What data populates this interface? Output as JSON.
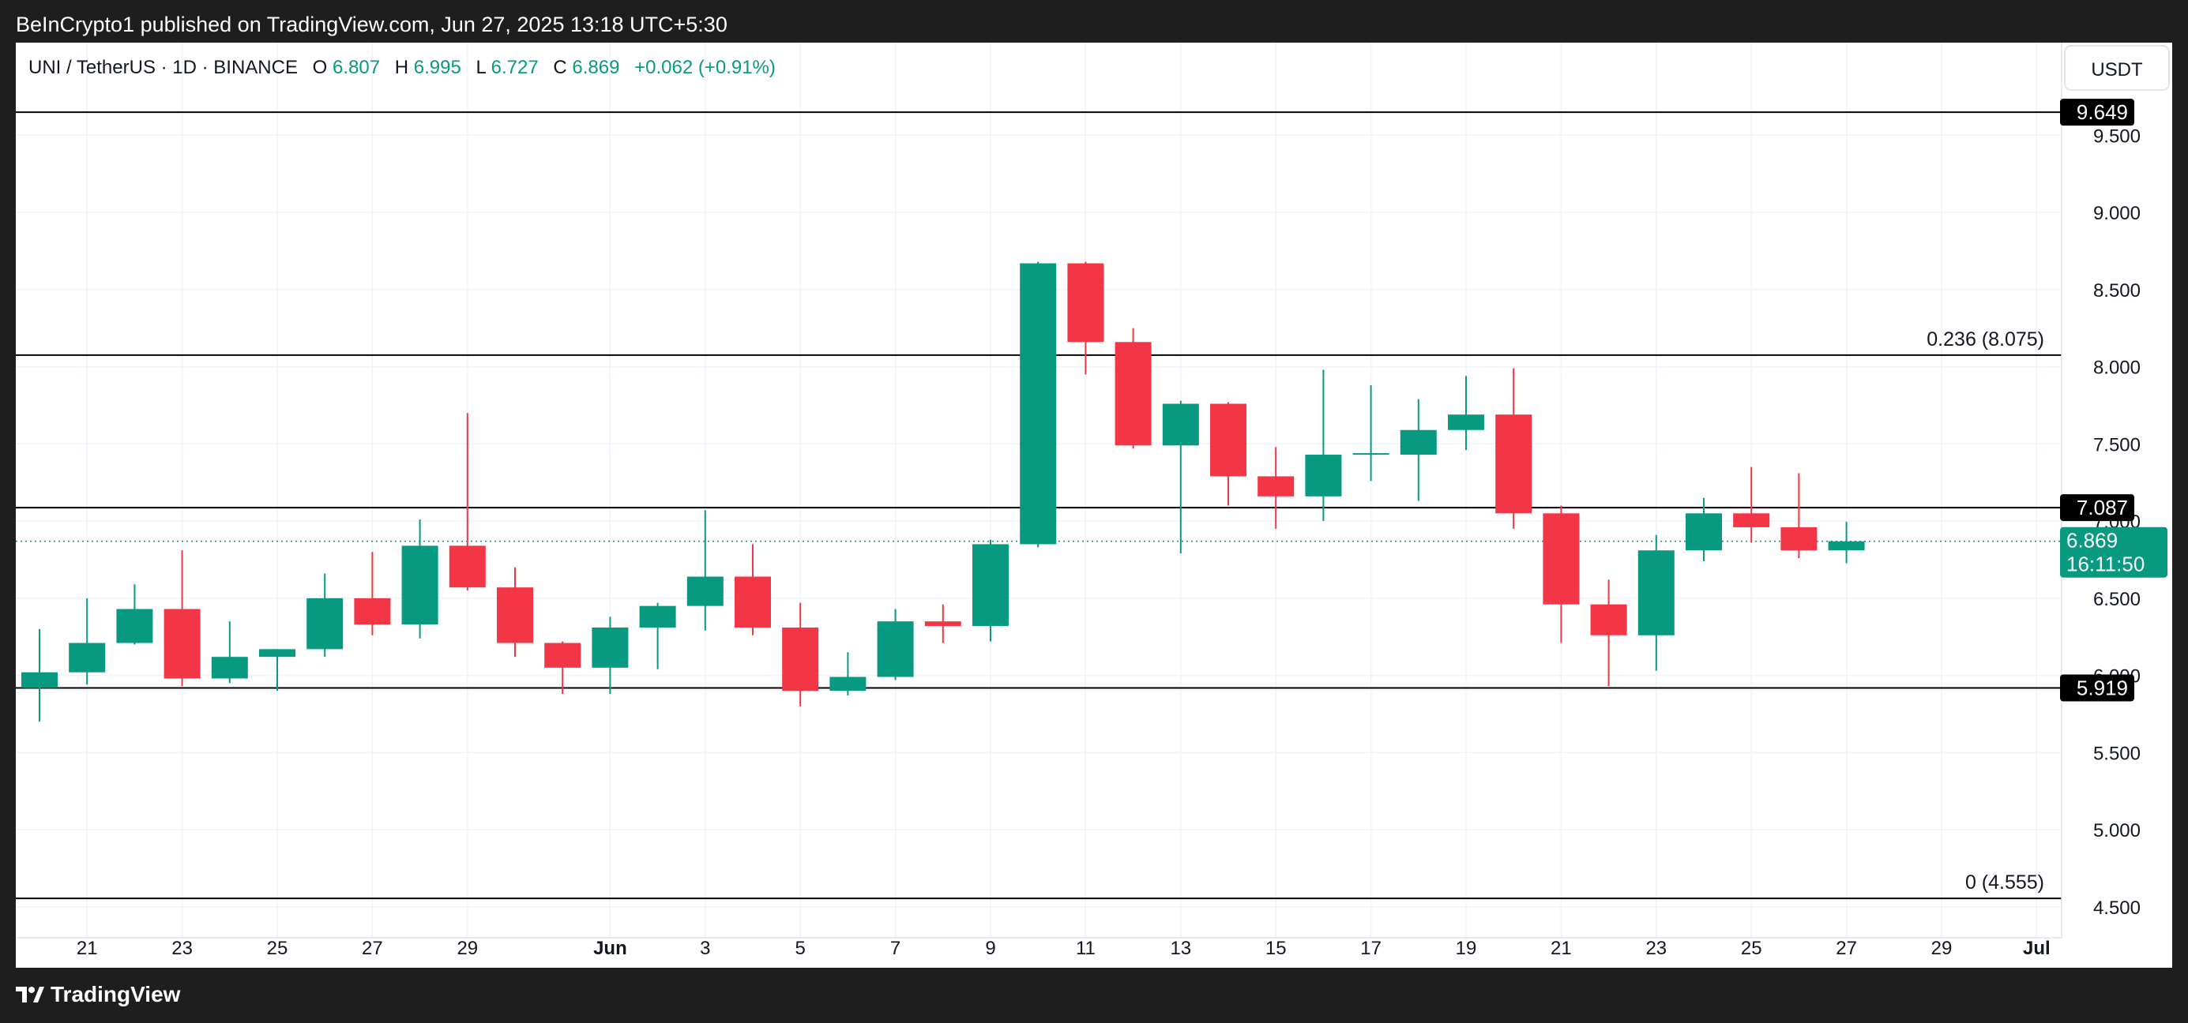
{
  "header": {
    "published": "BeInCrypto1 published on TradingView.com, Jun 27, 2025 13:18 UTC+5:30"
  },
  "legend": {
    "symbol": "UNI / TetherUS · 1D · BINANCE",
    "o_label": "O",
    "o_value": "6.807",
    "h_label": "H",
    "h_value": "6.995",
    "l_label": "L",
    "l_value": "6.727",
    "c_label": "C",
    "c_value": "6.869",
    "change": "+0.062 (+0.91%)"
  },
  "currency_button": "USDT",
  "footer": {
    "brand": "TradingView"
  },
  "colors": {
    "up": "#089981",
    "down": "#f23645",
    "level_line": "#000000",
    "grid": "#f0f3fa",
    "text": "#131722",
    "axis_text": "#131722",
    "current_price": "#089981"
  },
  "chart_data": {
    "type": "candlestick",
    "ylim": [
      4.3,
      10.1
    ],
    "y_ticks": [
      4.5,
      5.0,
      5.5,
      6.0,
      6.5,
      7.0,
      7.5,
      8.0,
      8.5,
      9.0,
      9.5
    ],
    "y_tick_labels": [
      "4.500",
      "5.000",
      "5.500",
      "6.000",
      "6.500",
      "7.000",
      "7.500",
      "8.000",
      "8.500",
      "9.000",
      "9.500"
    ],
    "x_start": "2025-05-20",
    "x_end": "2025-07-01",
    "x_ticks": [
      {
        "date": "2025-05-21",
        "label": "21",
        "bold": false
      },
      {
        "date": "2025-05-23",
        "label": "23",
        "bold": false
      },
      {
        "date": "2025-05-25",
        "label": "25",
        "bold": false
      },
      {
        "date": "2025-05-27",
        "label": "27",
        "bold": false
      },
      {
        "date": "2025-05-29",
        "label": "29",
        "bold": false
      },
      {
        "date": "2025-06-01",
        "label": "Jun",
        "bold": true
      },
      {
        "date": "2025-06-03",
        "label": "3",
        "bold": false
      },
      {
        "date": "2025-06-05",
        "label": "5",
        "bold": false
      },
      {
        "date": "2025-06-07",
        "label": "7",
        "bold": false
      },
      {
        "date": "2025-06-09",
        "label": "9",
        "bold": false
      },
      {
        "date": "2025-06-11",
        "label": "11",
        "bold": false
      },
      {
        "date": "2025-06-13",
        "label": "13",
        "bold": false
      },
      {
        "date": "2025-06-15",
        "label": "15",
        "bold": false
      },
      {
        "date": "2025-06-17",
        "label": "17",
        "bold": false
      },
      {
        "date": "2025-06-19",
        "label": "19",
        "bold": false
      },
      {
        "date": "2025-06-21",
        "label": "21",
        "bold": false
      },
      {
        "date": "2025-06-23",
        "label": "23",
        "bold": false
      },
      {
        "date": "2025-06-25",
        "label": "25",
        "bold": false
      },
      {
        "date": "2025-06-27",
        "label": "27",
        "bold": false
      },
      {
        "date": "2025-06-29",
        "label": "29",
        "bold": false
      },
      {
        "date": "2025-07-01",
        "label": "Jul",
        "bold": true
      }
    ],
    "candles": [
      {
        "date": "2025-05-20",
        "o": 5.92,
        "h": 6.3,
        "l": 5.7,
        "c": 6.02
      },
      {
        "date": "2025-05-21",
        "o": 6.02,
        "h": 6.5,
        "l": 5.94,
        "c": 6.21
      },
      {
        "date": "2025-05-22",
        "o": 6.21,
        "h": 6.59,
        "l": 6.2,
        "c": 6.43
      },
      {
        "date": "2025-05-23",
        "o": 6.43,
        "h": 6.81,
        "l": 5.93,
        "c": 5.98
      },
      {
        "date": "2025-05-24",
        "o": 5.98,
        "h": 6.35,
        "l": 5.95,
        "c": 6.12
      },
      {
        "date": "2025-05-25",
        "o": 6.12,
        "h": 6.17,
        "l": 5.9,
        "c": 6.17
      },
      {
        "date": "2025-05-26",
        "o": 6.17,
        "h": 6.66,
        "l": 6.12,
        "c": 6.5
      },
      {
        "date": "2025-05-27",
        "o": 6.5,
        "h": 6.8,
        "l": 6.26,
        "c": 6.33
      },
      {
        "date": "2025-05-28",
        "o": 6.33,
        "h": 7.01,
        "l": 6.24,
        "c": 6.84
      },
      {
        "date": "2025-05-29",
        "o": 6.84,
        "h": 7.7,
        "l": 6.55,
        "c": 6.57
      },
      {
        "date": "2025-05-30",
        "o": 6.57,
        "h": 6.7,
        "l": 6.12,
        "c": 6.21
      },
      {
        "date": "2025-05-31",
        "o": 6.21,
        "h": 6.22,
        "l": 5.88,
        "c": 6.05
      },
      {
        "date": "2025-06-01",
        "o": 6.05,
        "h": 6.38,
        "l": 5.88,
        "c": 6.31
      },
      {
        "date": "2025-06-02",
        "o": 6.31,
        "h": 6.47,
        "l": 6.04,
        "c": 6.45
      },
      {
        "date": "2025-06-03",
        "o": 6.45,
        "h": 7.07,
        "l": 6.29,
        "c": 6.64
      },
      {
        "date": "2025-06-04",
        "o": 6.64,
        "h": 6.85,
        "l": 6.26,
        "c": 6.31
      },
      {
        "date": "2025-06-05",
        "o": 6.31,
        "h": 6.47,
        "l": 5.8,
        "c": 5.9
      },
      {
        "date": "2025-06-06",
        "o": 5.9,
        "h": 6.15,
        "l": 5.87,
        "c": 5.99
      },
      {
        "date": "2025-06-07",
        "o": 5.99,
        "h": 6.43,
        "l": 5.97,
        "c": 6.35
      },
      {
        "date": "2025-06-08",
        "o": 6.35,
        "h": 6.46,
        "l": 6.21,
        "c": 6.32
      },
      {
        "date": "2025-06-09",
        "o": 6.32,
        "h": 6.88,
        "l": 6.22,
        "c": 6.85
      },
      {
        "date": "2025-06-10",
        "o": 6.85,
        "h": 8.68,
        "l": 6.83,
        "c": 8.67
      },
      {
        "date": "2025-06-11",
        "o": 8.67,
        "h": 8.68,
        "l": 7.95,
        "c": 8.16
      },
      {
        "date": "2025-06-12",
        "o": 8.16,
        "h": 8.25,
        "l": 7.47,
        "c": 7.49
      },
      {
        "date": "2025-06-13",
        "o": 7.49,
        "h": 7.78,
        "l": 6.79,
        "c": 7.76
      },
      {
        "date": "2025-06-14",
        "o": 7.76,
        "h": 7.77,
        "l": 7.1,
        "c": 7.29
      },
      {
        "date": "2025-06-15",
        "o": 7.29,
        "h": 7.48,
        "l": 6.95,
        "c": 7.16
      },
      {
        "date": "2025-06-16",
        "o": 7.16,
        "h": 7.98,
        "l": 7.0,
        "c": 7.43
      },
      {
        "date": "2025-06-17",
        "o": 7.43,
        "h": 7.88,
        "l": 7.26,
        "c": 7.44
      },
      {
        "date": "2025-06-18",
        "o": 7.43,
        "h": 7.79,
        "l": 7.13,
        "c": 7.59
      },
      {
        "date": "2025-06-19",
        "o": 7.59,
        "h": 7.94,
        "l": 7.46,
        "c": 7.69
      },
      {
        "date": "2025-06-20",
        "o": 7.69,
        "h": 7.99,
        "l": 6.95,
        "c": 7.05
      },
      {
        "date": "2025-06-21",
        "o": 7.05,
        "h": 7.1,
        "l": 6.21,
        "c": 6.46
      },
      {
        "date": "2025-06-22",
        "o": 6.46,
        "h": 6.62,
        "l": 5.93,
        "c": 6.26
      },
      {
        "date": "2025-06-23",
        "o": 6.26,
        "h": 6.91,
        "l": 6.03,
        "c": 6.81
      },
      {
        "date": "2025-06-24",
        "o": 6.81,
        "h": 7.15,
        "l": 6.74,
        "c": 7.05
      },
      {
        "date": "2025-06-25",
        "o": 7.05,
        "h": 7.35,
        "l": 6.86,
        "c": 6.96
      },
      {
        "date": "2025-06-26",
        "o": 6.96,
        "h": 7.31,
        "l": 6.76,
        "c": 6.81
      },
      {
        "date": "2025-06-27",
        "o": 6.81,
        "h": 6.995,
        "l": 6.727,
        "c": 6.869
      }
    ],
    "levels": [
      {
        "price": 9.649,
        "tag": "9.649",
        "label": ""
      },
      {
        "price": 8.075,
        "tag": "",
        "label": "0.236 (8.075)"
      },
      {
        "price": 7.087,
        "tag": "7.087",
        "label": ""
      },
      {
        "price": 5.919,
        "tag": "5.919",
        "label": ""
      },
      {
        "price": 4.555,
        "tag": "",
        "label": "0 (4.555)"
      }
    ],
    "current_price": {
      "price": 6.869,
      "label": "6.869",
      "countdown": "16:11:50"
    }
  }
}
